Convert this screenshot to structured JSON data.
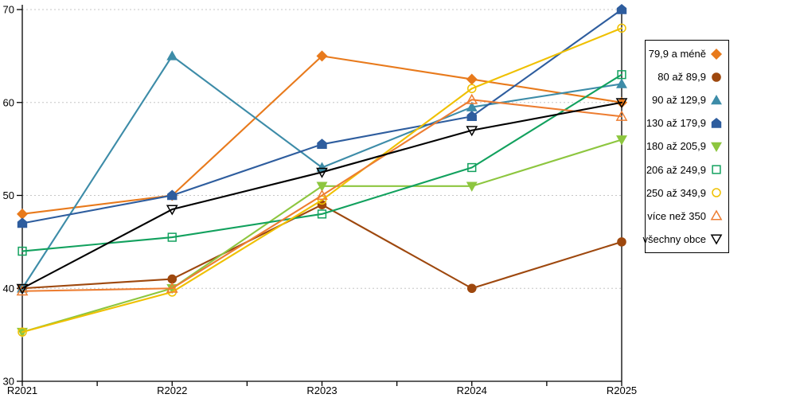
{
  "chart_data": {
    "type": "line",
    "title": "",
    "xlabel": "",
    "ylabel": "",
    "x_categories": [
      "R2021",
      "R2022",
      "R2023",
      "R2024",
      "R2025"
    ],
    "ylim": [
      30,
      70
    ],
    "y_ticks": [
      30,
      40,
      50,
      60,
      70
    ],
    "grid": "horizontal dotted gridlines at 40/50/60/70",
    "legend_position": "right",
    "series": [
      {
        "name": "79,9 a méně",
        "marker": "diamond-filled",
        "color": "#E87A1C",
        "values": [
          48,
          50,
          65,
          62.5,
          60
        ]
      },
      {
        "name": "80 až 89,9",
        "marker": "circle-filled",
        "color": "#9E480E",
        "values": [
          40,
          41,
          49,
          40,
          45
        ]
      },
      {
        "name": "90 až 129,9",
        "marker": "triangle-up-filled",
        "color": "#3D8CA8",
        "values": [
          40,
          65,
          53,
          59.5,
          62
        ]
      },
      {
        "name": "130 až 179,9",
        "marker": "pentagon-filled",
        "color": "#2E5D9E",
        "values": [
          47,
          50,
          55.5,
          58.5,
          70
        ]
      },
      {
        "name": "180 až 205,9",
        "marker": "triangle-down-filled",
        "color": "#8DC63F",
        "values": [
          35.3,
          40,
          51,
          51,
          56
        ]
      },
      {
        "name": "206 až 249,9",
        "marker": "square-open",
        "color": "#12A15E",
        "values": [
          44,
          45.5,
          48,
          53,
          63
        ]
      },
      {
        "name": "250 až 349,9",
        "marker": "circle-open",
        "color": "#EFC000",
        "values": [
          35.3,
          39.6,
          49.5,
          61.5,
          68
        ]
      },
      {
        "name": "více než 350",
        "marker": "triangle-up-open",
        "color": "#ED7D31",
        "values": [
          39.7,
          40,
          50,
          60.3,
          58.5
        ]
      },
      {
        "name": "všechny obce",
        "marker": "triangle-down-open",
        "color": "#000000",
        "values": [
          40,
          48.5,
          52.5,
          57,
          60
        ]
      }
    ]
  },
  "colors": {
    "background": "#FFFFFF",
    "axis": "#000000",
    "grid": "#C6C6C6",
    "text": "#000000"
  }
}
